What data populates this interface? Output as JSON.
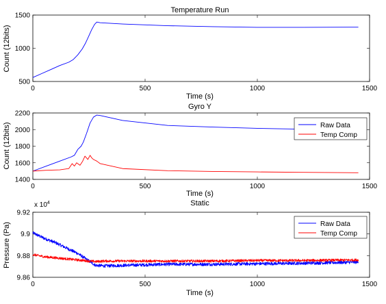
{
  "chart_data": [
    {
      "type": "line",
      "title": "Temperature Run",
      "xlabel": "Time (s)",
      "ylabel": "Count (12bits)",
      "xlim": [
        0,
        1500
      ],
      "ylim": [
        500,
        1500
      ],
      "xticks": [
        0,
        500,
        1000,
        1500
      ],
      "yticks": [
        500,
        1000,
        1500
      ],
      "grid": false,
      "legend": "none",
      "series": [
        {
          "color": "#0000ff",
          "noise": 0,
          "x": [
            0,
            40,
            80,
            120,
            160,
            180,
            200,
            220,
            235,
            250,
            262,
            275,
            285,
            300,
            400,
            600,
            800,
            1000,
            1200,
            1450
          ],
          "y": [
            560,
            620,
            680,
            740,
            790,
            830,
            900,
            990,
            1080,
            1190,
            1280,
            1360,
            1395,
            1385,
            1365,
            1340,
            1325,
            1315,
            1315,
            1318
          ]
        }
      ]
    },
    {
      "type": "line",
      "title": "Gyro Y",
      "xlabel": "Time (s)",
      "ylabel": "Count (12bits)",
      "xlim": [
        0,
        1500
      ],
      "ylim": [
        1400,
        2200
      ],
      "xticks": [
        0,
        500,
        1000,
        1500
      ],
      "yticks": [
        1400,
        1600,
        1800,
        2000,
        2200
      ],
      "grid": false,
      "legend": "top-right",
      "series": [
        {
          "name": "Raw Data",
          "color": "#0000ff",
          "noise": 0,
          "x": [
            0,
            60,
            120,
            170,
            185,
            200,
            215,
            225,
            240,
            255,
            270,
            285,
            300,
            400,
            600,
            800,
            1000,
            1200,
            1450
          ],
          "y": [
            1500,
            1560,
            1620,
            1670,
            1690,
            1760,
            1800,
            1850,
            1960,
            2080,
            2150,
            2175,
            2170,
            2110,
            2050,
            2030,
            2015,
            2005,
            2000
          ]
        },
        {
          "name": "Temp Comp",
          "color": "#ff0000",
          "noise": 0,
          "x": [
            0,
            60,
            120,
            160,
            175,
            185,
            195,
            210,
            222,
            232,
            245,
            255,
            262,
            270,
            285,
            300,
            400,
            600,
            800,
            1000,
            1200,
            1450
          ],
          "y": [
            1500,
            1510,
            1515,
            1530,
            1590,
            1560,
            1600,
            1570,
            1620,
            1680,
            1640,
            1690,
            1660,
            1640,
            1620,
            1590,
            1530,
            1505,
            1495,
            1490,
            1485,
            1480
          ]
        }
      ]
    },
    {
      "type": "line",
      "title": "Static",
      "xlabel": "Time (s)",
      "ylabel": "Pressure (Pa)",
      "scale_label": "x 10",
      "scale_exponent": "4",
      "xlim": [
        0,
        1500
      ],
      "ylim": [
        9.86,
        9.92
      ],
      "xticks": [
        0,
        500,
        1000,
        1500
      ],
      "yticks": [
        9.86,
        9.88,
        9.9,
        9.92
      ],
      "grid": false,
      "legend": "top-right",
      "series": [
        {
          "name": "Raw Data",
          "color": "#0000ff",
          "noise": 0.0015,
          "x": [
            0,
            50,
            100,
            150,
            200,
            250,
            280,
            320,
            400,
            500,
            600,
            800,
            1000,
            1200,
            1450
          ],
          "y": [
            9.901,
            9.896,
            9.892,
            9.887,
            9.882,
            9.875,
            9.871,
            9.8705,
            9.871,
            9.8715,
            9.872,
            9.872,
            9.8725,
            9.873,
            9.874
          ]
        },
        {
          "name": "Temp Comp",
          "color": "#ff0000",
          "noise": 0.0012,
          "x": [
            0,
            50,
            100,
            150,
            200,
            250,
            280,
            320,
            400,
            500,
            600,
            800,
            1000,
            1200,
            1450
          ],
          "y": [
            9.881,
            9.879,
            9.878,
            9.877,
            9.876,
            9.875,
            9.8745,
            9.875,
            9.875,
            9.875,
            9.875,
            9.875,
            9.8755,
            9.8755,
            9.876
          ]
        }
      ]
    }
  ]
}
